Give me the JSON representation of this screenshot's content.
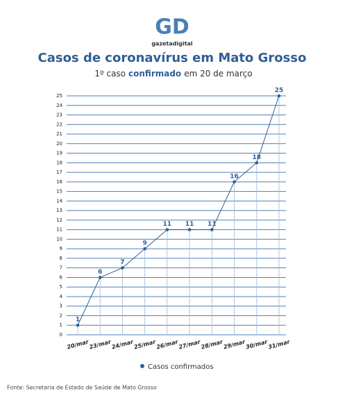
{
  "logo": {
    "mark": "GD",
    "text": "gazetadigital"
  },
  "chart_data": {
    "type": "line",
    "title": "Casos de coronavírus em Mato Grosso",
    "subtitle": [
      "1º caso",
      "confirmado",
      "em 20 de março"
    ],
    "categories": [
      "20/mar",
      "23/mar",
      "24/mar",
      "25/mar",
      "26/mar",
      "27/mar",
      "28/mar",
      "29/mar",
      "30/mar",
      "31/mar"
    ],
    "series": [
      {
        "name": "Casos confirmados",
        "color": "#2f5f95",
        "values": [
          1,
          6,
          7,
          9,
          11,
          11,
          11,
          16,
          18,
          25
        ]
      }
    ],
    "ylim": [
      0,
      25
    ],
    "yticks": [
      0,
      1,
      2,
      3,
      4,
      5,
      6,
      7,
      8,
      9,
      10,
      11,
      12,
      13,
      14,
      15,
      16,
      17,
      18,
      19,
      20,
      21,
      22,
      23,
      24,
      25
    ],
    "grid": true,
    "source": "Fonte: Secretaria de Estado de Saúde de Mato Grosso"
  }
}
